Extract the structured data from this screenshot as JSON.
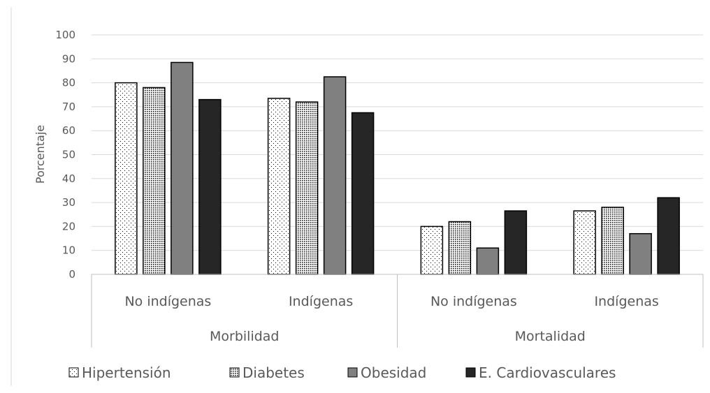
{
  "chart_data": {
    "type": "bar",
    "ylabel": "Porcentaje",
    "ylim": [
      0,
      100
    ],
    "y_ticks": [
      0,
      10,
      20,
      30,
      40,
      50,
      60,
      70,
      80,
      90,
      100
    ],
    "grid": true,
    "legend_position": "bottom",
    "groups": [
      {
        "label": "Morbilidad",
        "categories": [
          "No indígenas",
          "Indígenas"
        ]
      },
      {
        "label": "Mortalidad",
        "categories": [
          "No indígenas",
          "Indígenas"
        ]
      }
    ],
    "categories": [
      "No indígenas",
      "Indígenas",
      "No indígenas",
      "Indígenas"
    ],
    "series": [
      {
        "name": "Hipertensión",
        "fill": "dots-sparse",
        "values": [
          80,
          73.5,
          20,
          26.5
        ]
      },
      {
        "name": "Diabetes",
        "fill": "dots-dense",
        "values": [
          78,
          72,
          22,
          28
        ]
      },
      {
        "name": "Obesidad",
        "fill": "#808080",
        "values": [
          88.5,
          82.5,
          11,
          17
        ]
      },
      {
        "name": "E. Cardiovasculares",
        "fill": "#262626",
        "values": [
          73,
          67.5,
          26.5,
          32
        ]
      }
    ]
  }
}
